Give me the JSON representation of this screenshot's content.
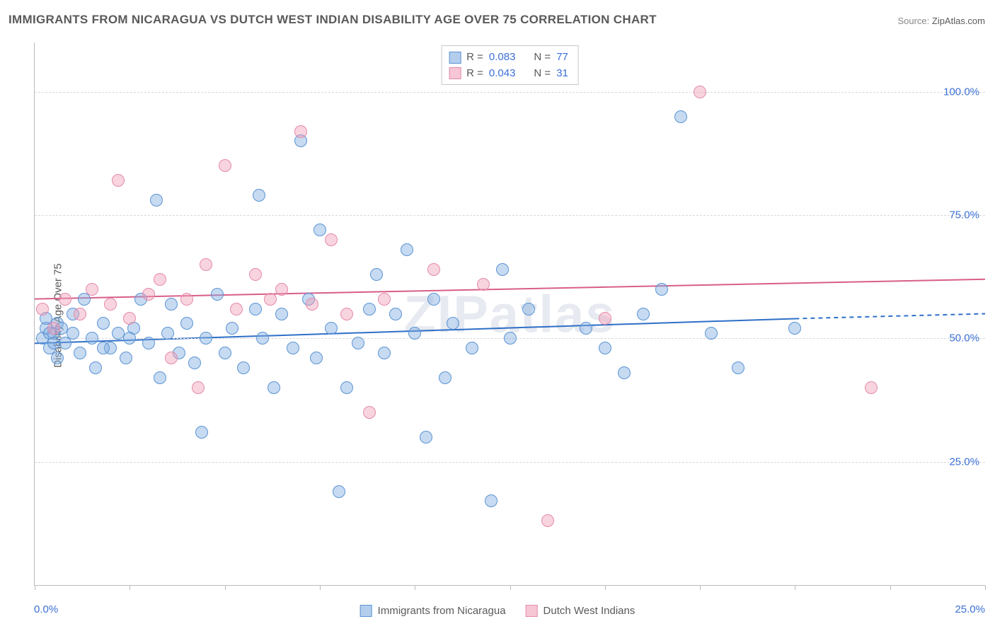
{
  "title": "IMMIGRANTS FROM NICARAGUA VS DUTCH WEST INDIAN DISABILITY AGE OVER 75 CORRELATION CHART",
  "source_label": "Source: ",
  "source_value": "ZipAtlas.com",
  "ylabel": "Disability Age Over 75",
  "watermark": "ZIPatlas",
  "chart": {
    "type": "scatter",
    "xlim": [
      0,
      25
    ],
    "ylim": [
      0,
      110
    ],
    "y_gridlines": [
      25,
      50,
      75,
      100
    ],
    "y_tick_labels": [
      "25.0%",
      "50.0%",
      "75.0%",
      "100.0%"
    ],
    "x_ticks": [
      0,
      2.5,
      5,
      7.5,
      10,
      12.5,
      15,
      17.5,
      20,
      22.5,
      25
    ],
    "xlim_labels": [
      "0.0%",
      "25.0%"
    ],
    "background_color": "#ffffff",
    "grid_color": "#d8d8d8",
    "axis_color": "#bbbbbb",
    "tick_label_color": "#3b6fd6",
    "marker_size": 18,
    "title_fontsize": 17,
    "label_fontsize": 15
  },
  "series": {
    "a": {
      "label": "Immigrants from Nicaragua",
      "color_fill": "rgba(128,172,224,0.45)",
      "color_hex": "#7eaede",
      "color_stroke": "#5b94d4",
      "R": "0.083",
      "N": "77",
      "trend": {
        "x1": 0,
        "y1": 49,
        "x2": 20,
        "y2": 54,
        "dash_to_x": 25,
        "dash_to_y": 55,
        "stroke": "#2f6fc8",
        "width": 2
      },
      "points": [
        [
          0.2,
          50
        ],
        [
          0.3,
          52
        ],
        [
          0.4,
          48
        ],
        [
          0.5,
          51
        ],
        [
          0.6,
          53
        ],
        [
          0.6,
          46
        ],
        [
          0.7,
          52
        ],
        [
          0.8,
          49
        ],
        [
          1.0,
          55
        ],
        [
          1.2,
          47
        ],
        [
          1.3,
          58
        ],
        [
          1.5,
          50
        ],
        [
          1.6,
          44
        ],
        [
          1.8,
          53
        ],
        [
          2.0,
          48
        ],
        [
          2.2,
          51
        ],
        [
          2.4,
          46
        ],
        [
          2.6,
          52
        ],
        [
          2.8,
          58
        ],
        [
          3.0,
          49
        ],
        [
          3.2,
          78
        ],
        [
          3.3,
          42
        ],
        [
          3.5,
          51
        ],
        [
          3.6,
          57
        ],
        [
          3.8,
          47
        ],
        [
          4.0,
          53
        ],
        [
          4.2,
          45
        ],
        [
          4.4,
          31
        ],
        [
          4.5,
          50
        ],
        [
          4.8,
          59
        ],
        [
          5.0,
          47
        ],
        [
          5.2,
          52
        ],
        [
          5.5,
          44
        ],
        [
          5.8,
          56
        ],
        [
          5.9,
          79
        ],
        [
          6.0,
          50
        ],
        [
          6.3,
          40
        ],
        [
          6.5,
          55
        ],
        [
          6.8,
          48
        ],
        [
          7.0,
          90
        ],
        [
          7.2,
          58
        ],
        [
          7.4,
          46
        ],
        [
          7.5,
          72
        ],
        [
          7.8,
          52
        ],
        [
          8.0,
          19
        ],
        [
          8.2,
          40
        ],
        [
          8.5,
          49
        ],
        [
          8.8,
          56
        ],
        [
          9.0,
          63
        ],
        [
          9.2,
          47
        ],
        [
          9.5,
          55
        ],
        [
          9.8,
          68
        ],
        [
          10.0,
          51
        ],
        [
          10.3,
          30
        ],
        [
          10.5,
          58
        ],
        [
          10.8,
          42
        ],
        [
          11.0,
          53
        ],
        [
          11.5,
          48
        ],
        [
          12.0,
          17
        ],
        [
          12.3,
          64
        ],
        [
          12.5,
          50
        ],
        [
          13.0,
          56
        ],
        [
          14.5,
          52
        ],
        [
          15.0,
          48
        ],
        [
          15.5,
          43
        ],
        [
          16.0,
          55
        ],
        [
          16.5,
          60
        ],
        [
          17.0,
          95
        ],
        [
          17.8,
          51
        ],
        [
          18.5,
          44
        ],
        [
          20.0,
          52
        ],
        [
          0.3,
          54
        ],
        [
          0.4,
          51
        ],
        [
          0.5,
          49
        ],
        [
          1.0,
          51
        ],
        [
          1.8,
          48
        ],
        [
          2.5,
          50
        ]
      ]
    },
    "b": {
      "label": "Dutch West Indians",
      "color_fill": "rgba(240,160,185,0.45)",
      "color_hex": "#f0a0b9",
      "color_stroke": "#e48aab",
      "R": "0.043",
      "N": "31",
      "trend": {
        "x1": 0,
        "y1": 58,
        "x2": 25,
        "y2": 62,
        "stroke": "#d85e8a",
        "width": 2
      },
      "points": [
        [
          0.2,
          56
        ],
        [
          0.5,
          52
        ],
        [
          0.8,
          58
        ],
        [
          1.2,
          55
        ],
        [
          1.5,
          60
        ],
        [
          2.0,
          57
        ],
        [
          2.2,
          82
        ],
        [
          2.5,
          54
        ],
        [
          3.0,
          59
        ],
        [
          3.3,
          62
        ],
        [
          3.6,
          46
        ],
        [
          4.0,
          58
        ],
        [
          4.3,
          40
        ],
        [
          4.5,
          65
        ],
        [
          5.0,
          85
        ],
        [
          5.3,
          56
        ],
        [
          5.8,
          63
        ],
        [
          6.2,
          58
        ],
        [
          6.5,
          60
        ],
        [
          7.0,
          92
        ],
        [
          7.3,
          57
        ],
        [
          7.8,
          70
        ],
        [
          8.2,
          55
        ],
        [
          8.8,
          35
        ],
        [
          9.2,
          58
        ],
        [
          10.5,
          64
        ],
        [
          11.8,
          61
        ],
        [
          13.5,
          13
        ],
        [
          15.0,
          54
        ],
        [
          17.5,
          100
        ],
        [
          22.0,
          40
        ]
      ]
    }
  },
  "corr_legend": {
    "r_label": "R =",
    "n_label": "N ="
  }
}
